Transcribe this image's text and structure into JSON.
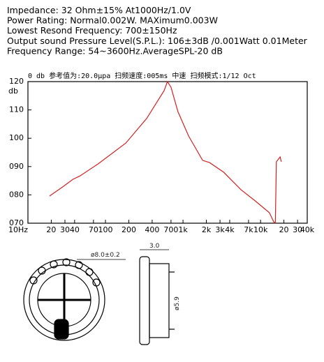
{
  "specs": [
    "Impedance: 32  Ohm±15%  At1000Hz/1.0V",
    "Power Rating: Normal0.002W. MAXimum0.003W",
    "Lowest Resond Frequency: 700±150Hz",
    "Output sound Pressure Level(S.P.L.): 106±3dB /0.001Watt 0.01Meter",
    "Frequency Range: 54~3600Hz.AverageSPL-20 dB"
  ],
  "chart_data": {
    "type": "line",
    "title": "0 db  参考值为:20.0μpa  扫频速度:005ms  中速  扫频模式:1/12  Oct",
    "y_label": "db",
    "log_x": true,
    "grid": false,
    "color": "#d42020",
    "x": [
      19,
      28,
      38,
      47,
      80,
      183,
      340,
      570,
      630,
      700,
      860,
      1180,
      1790,
      2200,
      3340,
      5600,
      8500,
      13000,
      14800,
      15500,
      16000,
      17900,
      18500
    ],
    "y": [
      79.6,
      82.8,
      85.5,
      86.7,
      90.9,
      98.3,
      107,
      116.8,
      120,
      118,
      109.4,
      100.8,
      92.2,
      91.4,
      88,
      81.8,
      77.9,
      73.7,
      70.5,
      70,
      91.7,
      93.4,
      91.7
    ],
    "xlim": [
      10,
      40000
    ],
    "ylim": [
      70,
      120
    ],
    "xticks": [
      {
        "value": 10,
        "label": "10Hz"
      },
      20,
      30,
      40,
      70,
      100,
      200,
      400,
      700,
      {
        "value": 1000,
        "label": "1k"
      },
      {
        "value": 2000,
        "label": "2k"
      },
      {
        "value": 3000,
        "label": "3k"
      },
      {
        "value": 4000,
        "label": "4k"
      },
      {
        "value": 7000,
        "label": "7k"
      },
      {
        "value": 10000,
        "label": "10k"
      },
      {
        "value": 20000,
        "label": "20"
      },
      {
        "value": 30000,
        "label": "30"
      },
      {
        "value": 40000,
        "label": "40k"
      }
    ],
    "yticks": [
      {
        "value": 70,
        "label": "070"
      },
      {
        "value": 80,
        "label": "080"
      },
      {
        "value": 90,
        "label": "090"
      },
      100,
      110,
      120
    ]
  },
  "drawing": {
    "outer_diameter": "ø8.0±0.2",
    "thickness": "3.0",
    "inner_diameter": "ø5.9"
  }
}
